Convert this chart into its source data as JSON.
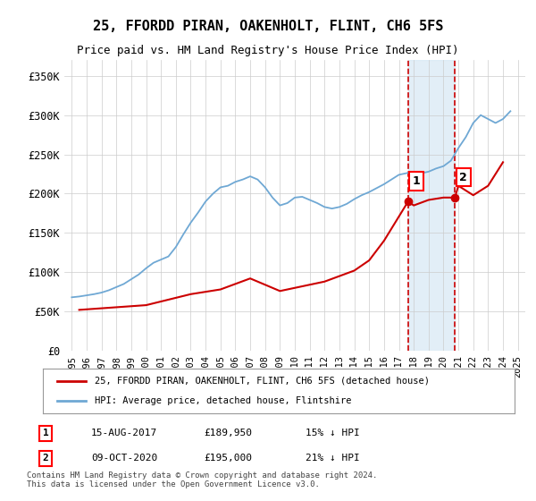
{
  "title": "25, FFORDD PIRAN, OAKENHOLT, FLINT, CH6 5FS",
  "subtitle": "Price paid vs. HM Land Registry's House Price Index (HPI)",
  "hpi_years": [
    1995,
    1995.5,
    1996,
    1996.5,
    1997,
    1997.5,
    1998,
    1998.5,
    1999,
    1999.5,
    2000,
    2000.5,
    2001,
    2001.5,
    2002,
    2002.5,
    2003,
    2003.5,
    2004,
    2004.5,
    2005,
    2005.5,
    2006,
    2006.5,
    2007,
    2007.5,
    2008,
    2008.5,
    2009,
    2009.5,
    2010,
    2010.5,
    2011,
    2011.5,
    2012,
    2012.5,
    2013,
    2013.5,
    2014,
    2014.5,
    2015,
    2015.5,
    2016,
    2016.5,
    2017,
    2017.5,
    2018,
    2018.5,
    2019,
    2019.5,
    2020,
    2020.5,
    2021,
    2021.5,
    2022,
    2022.5,
    2023,
    2023.5,
    2024,
    2024.5
  ],
  "hpi_values": [
    68000,
    69000,
    70500,
    72000,
    74000,
    77000,
    81000,
    85000,
    91000,
    97000,
    105000,
    112000,
    116000,
    120000,
    132000,
    148000,
    163000,
    176000,
    190000,
    200000,
    208000,
    210000,
    215000,
    218000,
    222000,
    218000,
    208000,
    195000,
    185000,
    188000,
    195000,
    196000,
    192000,
    188000,
    183000,
    181000,
    183000,
    187000,
    193000,
    198000,
    202000,
    207000,
    212000,
    218000,
    224000,
    226000,
    228000,
    226000,
    228000,
    232000,
    235000,
    242000,
    258000,
    272000,
    290000,
    300000,
    295000,
    290000,
    295000,
    305000
  ],
  "price_paid_years": [
    1995.5,
    2000,
    2003,
    2005,
    2007,
    2009,
    2012,
    2014,
    2015,
    2016,
    2017.62,
    2018,
    2019,
    2020,
    2020.77,
    2021,
    2022,
    2023,
    2024
  ],
  "price_paid_values": [
    52000,
    58000,
    72000,
    78000,
    92000,
    76000,
    88000,
    102000,
    115000,
    140000,
    189950,
    185000,
    192000,
    195000,
    195000,
    210000,
    198000,
    210000,
    240000
  ],
  "sale1_x": 2017.62,
  "sale1_y": 189950,
  "sale1_label": "1",
  "sale1_date": "15-AUG-2017",
  "sale1_price": "£189,950",
  "sale1_pct": "15% ↓ HPI",
  "sale2_x": 2020.77,
  "sale2_y": 195000,
  "sale2_label": "2",
  "sale2_date": "09-OCT-2020",
  "sale2_price": "£195,000",
  "sale2_pct": "21% ↓ HPI",
  "hpi_color": "#6fa8d4",
  "price_color": "#cc0000",
  "dashed_line_color": "#cc0000",
  "shade_color": "#d6e8f5",
  "ylim_min": 0,
  "ylim_max": 370000,
  "xlim_min": 1994.5,
  "xlim_max": 2025.5,
  "yticks": [
    0,
    50000,
    100000,
    150000,
    200000,
    250000,
    300000,
    350000
  ],
  "ytick_labels": [
    "£0",
    "£50K",
    "£100K",
    "£150K",
    "£200K",
    "£250K",
    "£300K",
    "£350K"
  ],
  "xtick_years": [
    1995,
    1996,
    1997,
    1998,
    1999,
    2000,
    2001,
    2002,
    2003,
    2004,
    2005,
    2006,
    2007,
    2008,
    2009,
    2010,
    2011,
    2012,
    2013,
    2014,
    2015,
    2016,
    2017,
    2018,
    2019,
    2020,
    2021,
    2022,
    2023,
    2024,
    2025
  ],
  "legend_label1": "25, FFORDD PIRAN, OAKENHOLT, FLINT, CH6 5FS (detached house)",
  "legend_label2": "HPI: Average price, detached house, Flintshire",
  "footer": "Contains HM Land Registry data © Crown copyright and database right 2024.\nThis data is licensed under the Open Government Licence v3.0.",
  "background_color": "#ffffff",
  "grid_color": "#cccccc"
}
